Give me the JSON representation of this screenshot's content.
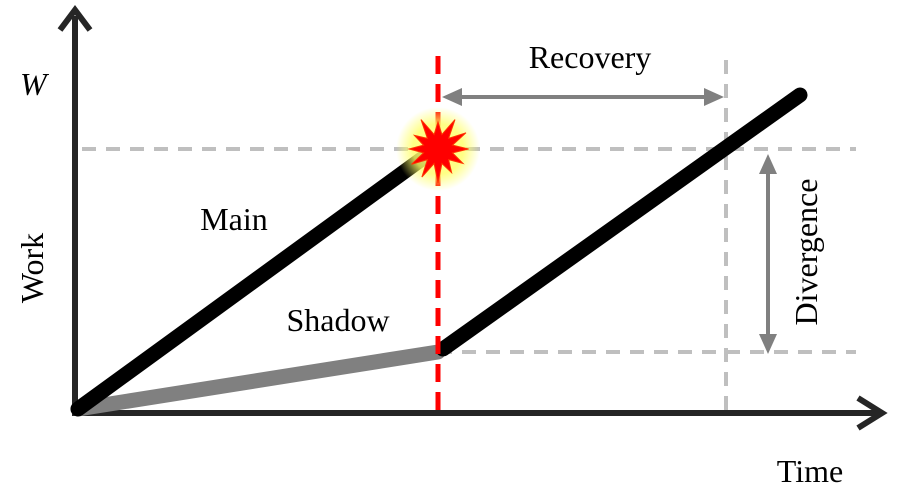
{
  "y_axis": {
    "symbol": "W",
    "label": "Work"
  },
  "x_axis": {
    "label": "Time"
  },
  "lines": {
    "main": {
      "label": "Main",
      "color": "#000000"
    },
    "shadow": {
      "label": "Shadow",
      "color": "#808080"
    }
  },
  "annotations": {
    "recovery": "Recovery",
    "divergence": "Divergence"
  },
  "colors": {
    "failure_line": "#ff0000",
    "guide_lines": "#bfbfbf",
    "arrows": "#808080",
    "failure_burst": "#ff0000",
    "failure_glow": "#ffff66"
  },
  "icons": {
    "failure": "explosion-burst-icon"
  }
}
